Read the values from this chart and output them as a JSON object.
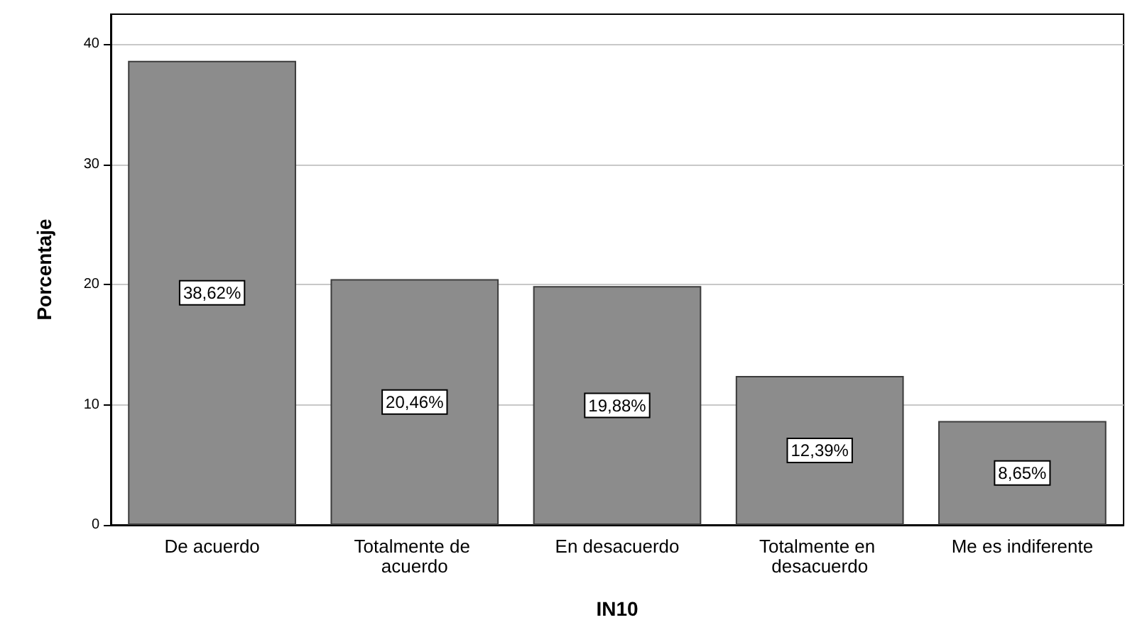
{
  "chart_data": {
    "type": "bar",
    "xlabel": "IN10",
    "ylabel": "Porcentaje",
    "categories": [
      "De acuerdo",
      "Totalmente de acuerdo",
      "En desacuerdo",
      "Totalmente en desacuerdo",
      "Me es indiferente"
    ],
    "values": [
      38.62,
      20.46,
      19.88,
      12.39,
      8.65
    ],
    "value_labels": [
      "38,62%",
      "20,46%",
      "19,88%",
      "12,39%",
      "8,65%"
    ],
    "color": "#8c8c8c",
    "ylim": [
      0,
      42.5
    ],
    "yticks": [
      0,
      10,
      20,
      30,
      40
    ],
    "grid": "y"
  }
}
